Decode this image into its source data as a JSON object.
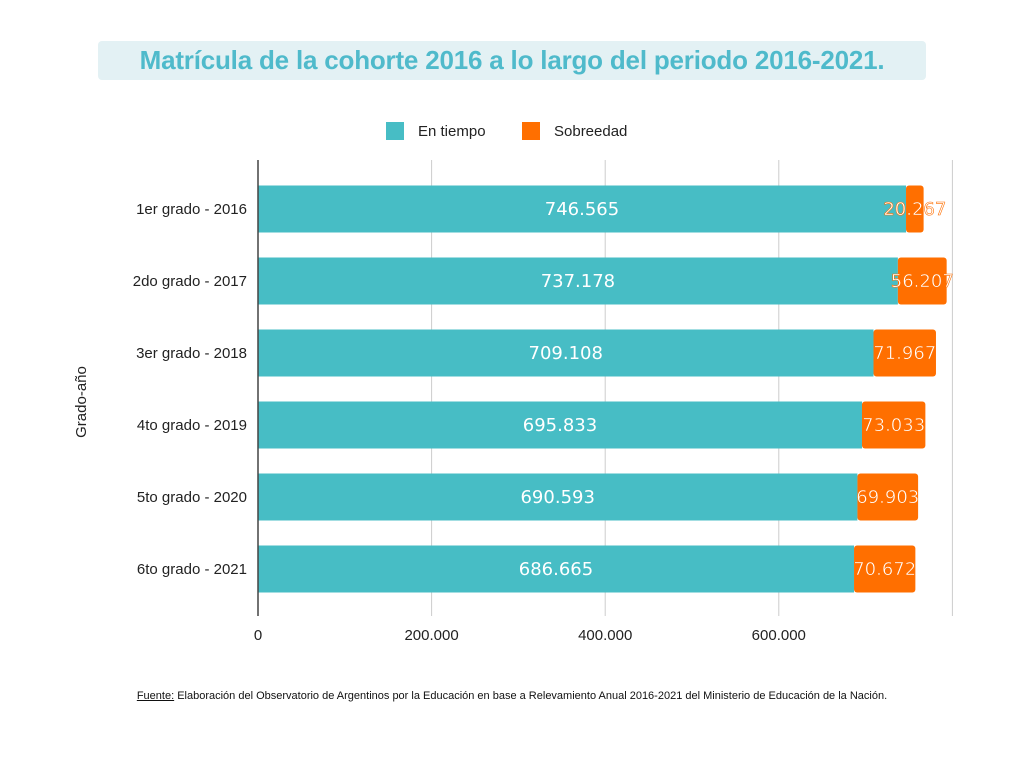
{
  "title": "Matrícula de la cohorte 2016 a lo largo del periodo 2016-2021.",
  "footnote": {
    "source_label": "Fuente:",
    "text": " Elaboración del Observatorio de Argentinos por la Educación en base a Relevamiento Anual 2016-2021 del Ministerio de Educación de la Nación."
  },
  "colors": {
    "title": "#4fbacb",
    "title_bg": "#e3f1f4",
    "en_tiempo": "#47bdc5",
    "sobreedad": "#ff6f00",
    "grid": "#cccccc"
  },
  "chart_data": {
    "type": "bar",
    "orientation": "horizontal",
    "stacked": true,
    "categories": [
      "1er grado - 2016",
      "2do grado - 2017",
      "3er grado - 2018",
      "4to grado - 2019",
      "5to grado - 2020",
      "6to grado - 2021"
    ],
    "series": [
      {
        "name": "En tiempo",
        "values": [
          746565,
          737178,
          709108,
          695833,
          690593,
          686665
        ],
        "labels": [
          "746.565",
          "737.178",
          "709.108",
          "695.833",
          "690.593",
          "686.665"
        ],
        "color": "#47bdc5"
      },
      {
        "name": "Sobreedad",
        "values": [
          20267,
          56207,
          71967,
          73033,
          69903,
          70672
        ],
        "labels": [
          "20.267",
          "56.207",
          "71.967",
          "73.033",
          "69.903",
          "70.672"
        ],
        "color": "#ff6f00"
      }
    ],
    "xlim": [
      0,
      800000
    ],
    "xticks": [
      0,
      200000,
      400000,
      600000
    ],
    "xtick_labels": [
      "0",
      "200.000",
      "400.000",
      "600.000"
    ],
    "ylabel": "Grado-año",
    "xlabel": "",
    "grid": true,
    "legend_position": "top-center"
  }
}
